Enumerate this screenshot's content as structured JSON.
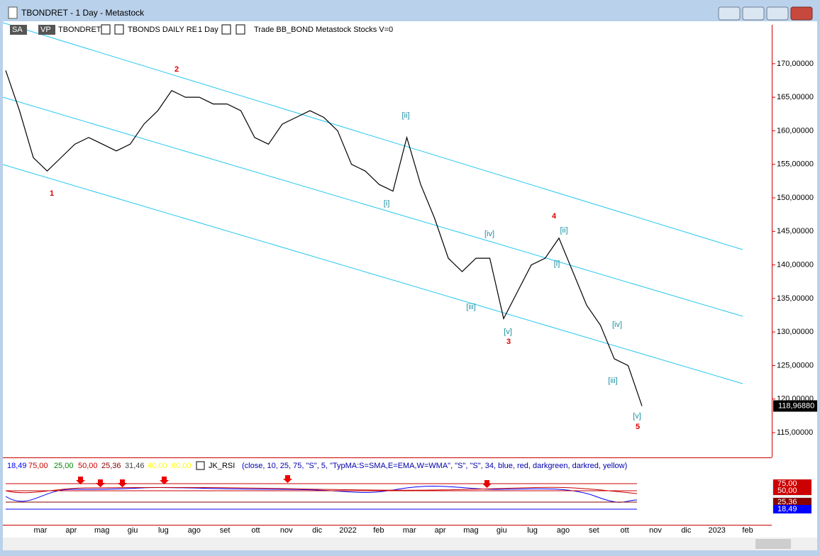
{
  "window": {
    "title": "TBONDRET - 1 Day - Metastock"
  },
  "toolbar": {
    "items": [
      "SA",
      "VP",
      "TBONDRET",
      "TBONDS DAILY RE",
      "1 Day",
      "Trade  BB_BOND  Metastock  Stocks  V=0"
    ]
  },
  "price_chart": {
    "type": "line",
    "color": "#000000",
    "ylim": [
      111.3,
      175.8
    ],
    "yticks": [
      {
        "value": 170,
        "label": "170,00000"
      },
      {
        "value": 165,
        "label": "165,00000"
      },
      {
        "value": 160,
        "label": "160,00000"
      },
      {
        "value": 155,
        "label": "155,00000"
      },
      {
        "value": 150,
        "label": "150,00000"
      },
      {
        "value": 145,
        "label": "145,00000"
      },
      {
        "value": 140,
        "label": "140,00000"
      },
      {
        "value": 135,
        "label": "135,00000"
      },
      {
        "value": 130,
        "label": "130,00000"
      },
      {
        "value": 125,
        "label": "125,00000"
      },
      {
        "value": 120,
        "label": "120,00000"
      },
      {
        "value": 115,
        "label": "115,00000"
      }
    ],
    "values": [
      169,
      163,
      156,
      154,
      156,
      158,
      159,
      158,
      157,
      158,
      161,
      163,
      166,
      165,
      165,
      164,
      164,
      163,
      159,
      158,
      161,
      162,
      163,
      162,
      160,
      155,
      154,
      152,
      151,
      159,
      152,
      147,
      141,
      139,
      141,
      141,
      132,
      136,
      140,
      141,
      144,
      139,
      134,
      131,
      126,
      125,
      118.9688
    ],
    "last_price": {
      "value": 118.9688,
      "label": "118,96880"
    },
    "annotations": [
      "1",
      "2",
      "3",
      "4",
      "5",
      "[i]",
      "[ii]",
      "[iii]",
      "[iv]",
      "[v]",
      "[i]",
      "[ii]",
      "[iii]",
      "[iv]",
      "[v]"
    ],
    "x_labels": [
      "mar",
      "apr",
      "mag",
      "giu",
      "lug",
      "ago",
      "set",
      "ott",
      "nov",
      "dic",
      "2022",
      "feb",
      "mar",
      "apr",
      "mag",
      "giu",
      "lug",
      "ago",
      "set",
      "ott",
      "nov",
      "dic",
      "2023",
      "feb"
    ]
  },
  "indicator": {
    "values": [
      "18,49",
      "75,00",
      "25,00",
      "50,00",
      "25,36",
      "31,46",
      "40,00",
      "60,00"
    ],
    "name": "JK_RSI",
    "params": "(close,  10,  25,  75,  \"S\",  5,  \"TypMA:S=SMA,E=EMA,W=WMA\",  \"S\",  \"S\",  34,  blue,  red,  darkgreen,  darkred,  yellow)",
    "axis_labels": [
      "75,00",
      "50,00",
      "25,36",
      "18,49"
    ]
  }
}
